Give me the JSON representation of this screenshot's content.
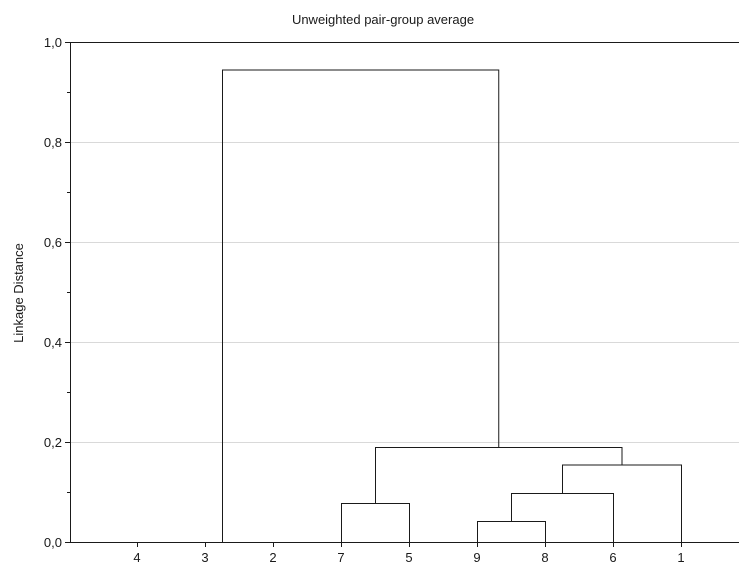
{
  "chart_data": {
    "type": "dendrogram",
    "title": "Unweighted pair-group average",
    "xlabel": "",
    "ylabel": "Linkage Distance",
    "ylim": [
      0.0,
      1.0
    ],
    "yticks": [
      "0,0",
      "0,2",
      "0,4",
      "0,6",
      "0,8",
      "1,0"
    ],
    "ytick_values": [
      0.0,
      0.2,
      0.4,
      0.6,
      0.8,
      1.0
    ],
    "leaf_order": [
      "4",
      "3",
      "2",
      "7",
      "5",
      "9",
      "8",
      "6",
      "1"
    ],
    "merges": [
      {
        "a": "4",
        "b": "3",
        "height": 0.0
      },
      {
        "a": "4,3",
        "b": "2",
        "height": 0.0
      },
      {
        "a": "9",
        "b": "8",
        "height": 0.042
      },
      {
        "a": "7",
        "b": "5",
        "height": 0.078
      },
      {
        "a": "9,8",
        "b": "6",
        "height": 0.098
      },
      {
        "a": "9,8,6",
        "b": "1",
        "height": 0.155
      },
      {
        "a": "7,5",
        "b": "9,8,6,1",
        "height": 0.19
      },
      {
        "a": "4,3,2",
        "b": "7,5,9,8,6,1",
        "height": 0.945
      }
    ],
    "grid": true,
    "colors": {
      "line": "#1a1a1a",
      "grid": "#d9d9d9"
    }
  }
}
